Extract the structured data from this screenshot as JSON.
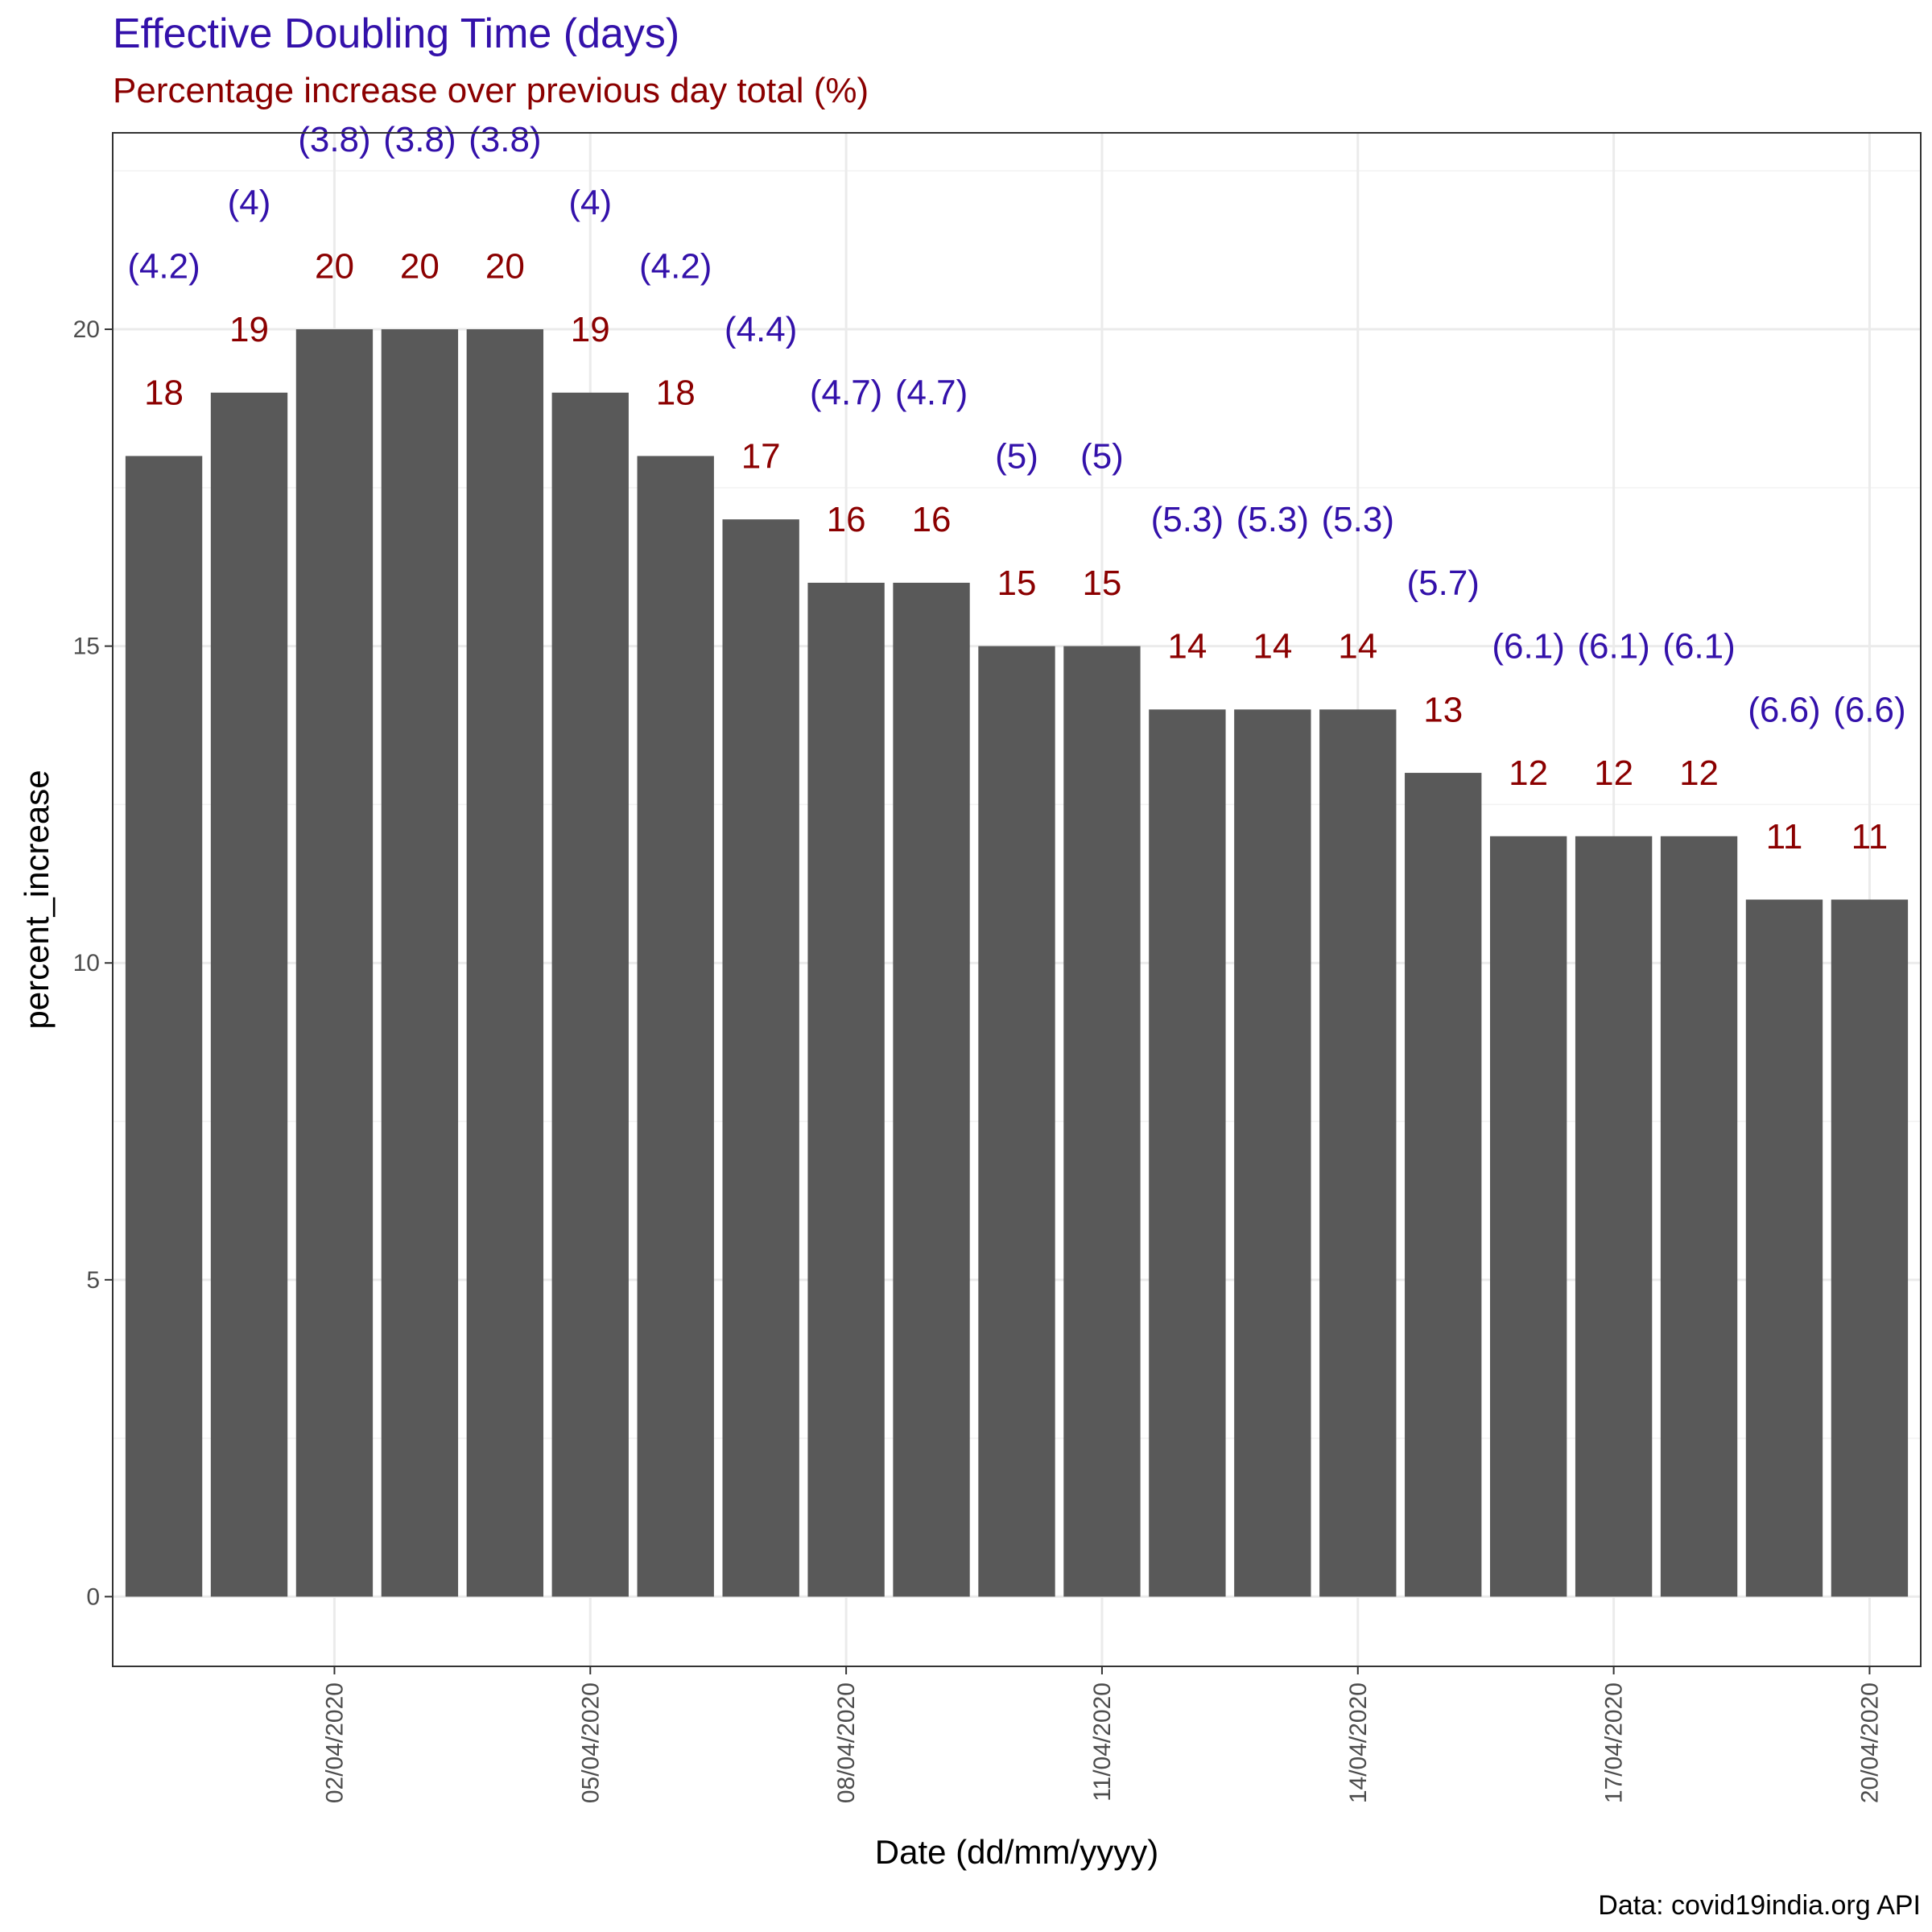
{
  "chart_data": {
    "type": "bar",
    "title": "Effective Doubling Time (days)",
    "subtitle": "Percentage increase over previous day total (%)",
    "xlabel": "Date (dd/mm/yyyy)",
    "ylabel": "percent_increase",
    "caption": "Data: covid19india.org API",
    "ylim": [
      -1.1,
      23.1
    ],
    "y_ticks": [
      0,
      5,
      10,
      15,
      20
    ],
    "grid": true,
    "dates": [
      "31/03/2020",
      "01/04/2020",
      "02/04/2020",
      "03/04/2020",
      "04/04/2020",
      "05/04/2020",
      "06/04/2020",
      "07/04/2020",
      "08/04/2020",
      "09/04/2020",
      "10/04/2020",
      "11/04/2020",
      "12/04/2020",
      "13/04/2020",
      "14/04/2020",
      "15/04/2020",
      "16/04/2020",
      "17/04/2020",
      "18/04/2020",
      "19/04/2020",
      "20/04/2020"
    ],
    "x_tick_labels": [
      "02/04/2020",
      "05/04/2020",
      "08/04/2020",
      "11/04/2020",
      "14/04/2020",
      "17/04/2020",
      "20/04/2020"
    ],
    "values": [
      18,
      19,
      20,
      20,
      20,
      19,
      18,
      17,
      16,
      16,
      15,
      15,
      14,
      14,
      14,
      13,
      12,
      12,
      12,
      11,
      11
    ],
    "doubling_time_labels": [
      "(4.2)",
      "(4)",
      "(3.8)",
      "(3.8)",
      "(3.8)",
      "(4)",
      "(4.2)",
      "(4.4)",
      "(4.7)",
      "(4.7)",
      "(5)",
      "(5)",
      "(5.3)",
      "(5.3)",
      "(5.3)",
      "(5.7)",
      "(6.1)",
      "(6.1)",
      "(6.1)",
      "(6.6)",
      "(6.6)"
    ],
    "colors": {
      "bar": "#595959",
      "title": "#3311aa",
      "subtitle": "#8b0000",
      "percent_label": "#8b0000",
      "doubling_label": "#3311aa",
      "grid_major": "#ebebeb",
      "grid_minor": "#f2f2f2",
      "panel_border": "#333333"
    }
  }
}
